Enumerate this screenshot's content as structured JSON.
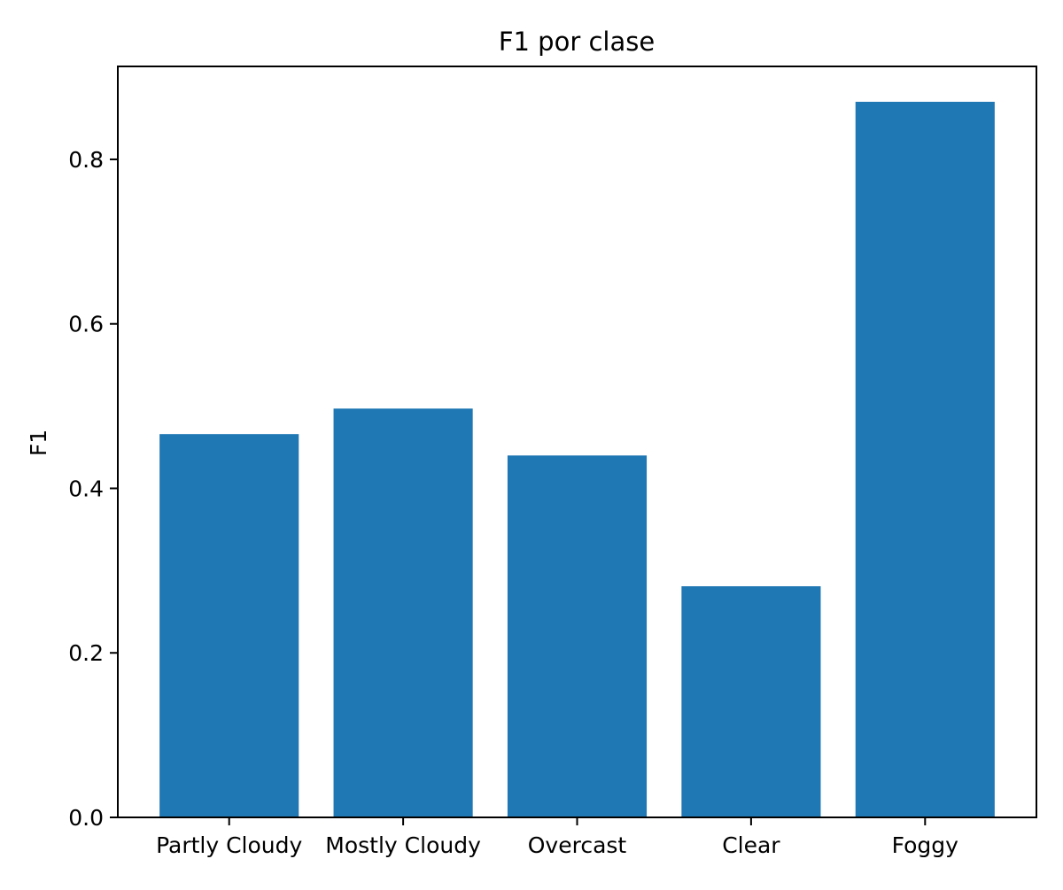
{
  "chart_data": {
    "type": "bar",
    "title": "F1 por clase",
    "xlabel": "",
    "ylabel": "F1",
    "categories": [
      "Partly Cloudy",
      "Mostly Cloudy",
      "Overcast",
      "Clear",
      "Foggy"
    ],
    "values": [
      0.466,
      0.497,
      0.44,
      0.281,
      0.87
    ],
    "ylim": [
      0,
      0.913
    ],
    "yticks": [
      "0.0",
      "0.2",
      "0.4",
      "0.6",
      "0.8"
    ],
    "bar_color": "#1f77b4",
    "grid": false,
    "legend": false
  }
}
